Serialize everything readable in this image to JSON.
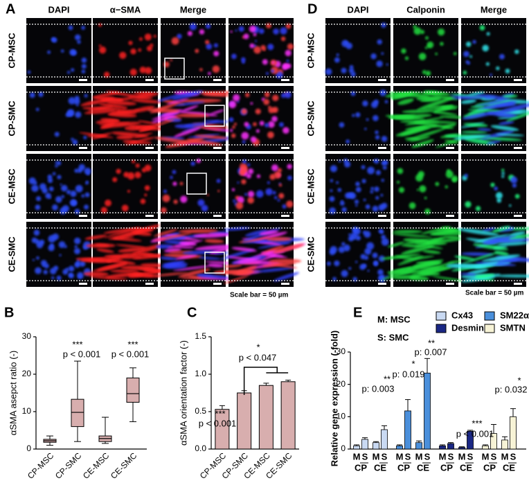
{
  "panel_a": {
    "label": "A",
    "columns": [
      "DAPI",
      "α−SMA",
      "Merge"
    ],
    "rows": [
      "CP-MSC",
      "CP-SMC",
      "CE-MSC",
      "CE-SMC"
    ],
    "scale_note": "Scale bar = 50 µm"
  },
  "panel_d": {
    "label": "D",
    "columns": [
      "DAPI",
      "Calponin",
      "Merge"
    ],
    "rows": [
      "CP-MSC",
      "CP-SMC",
      "CE-MSC",
      "CE-SMC"
    ],
    "scale_note": "Scale bar = 50 µm"
  },
  "chart_data": [
    {
      "type": "box",
      "label": "B",
      "y_label": "αSMA asepct ratio (-)",
      "categories": [
        "CP-MSC",
        "CP-SMC",
        "CE-MSC",
        "CE-SMC"
      ],
      "stats": {
        "min": [
          1,
          2,
          1.5,
          7.3
        ],
        "q1": [
          1.8,
          6,
          2,
          12.5
        ],
        "median": [
          2.2,
          9.8,
          2.8,
          14.8
        ],
        "q3": [
          2.6,
          13.3,
          3.5,
          19
        ],
        "max": [
          3.5,
          23.5,
          8.5,
          21.7
        ]
      },
      "color": "#d8aeae",
      "ylim": [
        0,
        30
      ],
      "yticks": [
        0,
        10,
        20,
        30
      ],
      "annotations": [
        "***",
        "p < 0.001",
        "***",
        "p < 0.001"
      ]
    },
    {
      "type": "bar",
      "label": "C",
      "y_label": "αSMA orientation factor (-)",
      "categories": [
        "CP-MSC",
        "CP-SMC",
        "CE-MSC",
        "CE-SMC"
      ],
      "values": [
        0.53,
        0.75,
        0.85,
        0.9
      ],
      "errors": [
        0.05,
        0.03,
        0.03,
        0.02
      ],
      "color": "#d8aeae",
      "ylim": [
        0,
        1.5
      ],
      "yticks": [
        {
          "value": 0,
          "label": "0.0"
        },
        {
          "value": 0.5,
          "label": "0.5"
        },
        {
          "value": 1,
          "label": "1.0"
        },
        {
          "value": 1.5,
          "label": "1.5"
        }
      ],
      "annotations": [
        "***",
        "p < 0.001",
        "*",
        "p < 0.047"
      ]
    },
    {
      "type": "grouped_bar",
      "label": "E",
      "y_label": "Relative gene expression (-fold)",
      "legend_notes": [
        "M: MSC",
        "S: SMC"
      ],
      "categories": [
        "M",
        "S",
        "M",
        "S"
      ],
      "group_labels": [
        "CP",
        "CE"
      ],
      "series": [
        {
          "name": "Cx43",
          "color": "#c9d9f2",
          "values": [
            1,
            3,
            2,
            6
          ],
          "errors": [
            0.3,
            0.5,
            0.3,
            1.2
          ]
        },
        {
          "name": "SM22α",
          "color": "#4a8fdb",
          "values": [
            1,
            11.8,
            2,
            23.5
          ],
          "errors": [
            0.3,
            3.5,
            0.5,
            4.5
          ]
        },
        {
          "name": "Desmin",
          "color": "#1a2784",
          "values": [
            1,
            1.7,
            0.5,
            5.5
          ],
          "errors": [
            0.3,
            0.3,
            0.2,
            0.3
          ]
        },
        {
          "name": "SMTN",
          "color": "#f7f3d6",
          "values": [
            1,
            4.8,
            2.8,
            10
          ],
          "errors": [
            0.3,
            2.8,
            1,
            2.5
          ]
        }
      ],
      "ylim": [
        0,
        30
      ],
      "yticks": [
        0,
        10,
        20,
        30
      ],
      "annotations": [
        "**",
        "p: 0.003",
        "*",
        "p: 0.019",
        "**",
        "p: 0.007",
        "***",
        "p < 0.001",
        "*",
        "p: 0.032"
      ]
    }
  ]
}
